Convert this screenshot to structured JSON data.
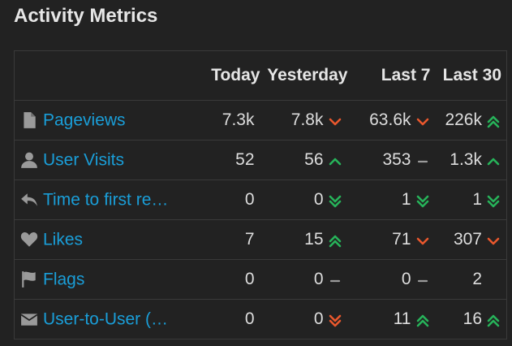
{
  "title": "Activity Metrics",
  "columns": [
    "Today",
    "Yesterday",
    "Last 7",
    "Last 30"
  ],
  "colors": {
    "up": "#27b35a",
    "down": "#e9572d",
    "flat": "#9a9a9a",
    "link": "#1a9ed8"
  },
  "rows": [
    {
      "label": "Pageviews",
      "icon": "file-icon",
      "today": "7.3k",
      "yesterday": "7.8k",
      "yesterday_trend": "down",
      "last7": "63.6k",
      "last7_trend": "down",
      "last30": "226k",
      "last30_trend": "double-up"
    },
    {
      "label": "User Visits",
      "icon": "user-icon",
      "today": "52",
      "yesterday": "56",
      "yesterday_trend": "up",
      "last7": "353",
      "last7_trend": "flat",
      "last30": "1.3k",
      "last30_trend": "up"
    },
    {
      "label": "Time to first re…",
      "icon": "reply-icon",
      "today": "0",
      "yesterday": "0",
      "yesterday_trend": "double-down-good",
      "last7": "1",
      "last7_trend": "double-down-good",
      "last30": "1",
      "last30_trend": "double-down-good"
    },
    {
      "label": "Likes",
      "icon": "heart-icon",
      "today": "7",
      "yesterday": "15",
      "yesterday_trend": "double-up",
      "last7": "71",
      "last7_trend": "down",
      "last30": "307",
      "last30_trend": "down"
    },
    {
      "label": "Flags",
      "icon": "flag-icon",
      "today": "0",
      "yesterday": "0",
      "yesterday_trend": "flat",
      "last7": "0",
      "last7_trend": "flat",
      "last30": "2",
      "last30_trend": "none"
    },
    {
      "label": "User-to-User (…",
      "icon": "envelope-icon",
      "today": "0",
      "yesterday": "0",
      "yesterday_trend": "double-down",
      "last7": "11",
      "last7_trend": "double-up",
      "last30": "16",
      "last30_trend": "double-up"
    }
  ]
}
